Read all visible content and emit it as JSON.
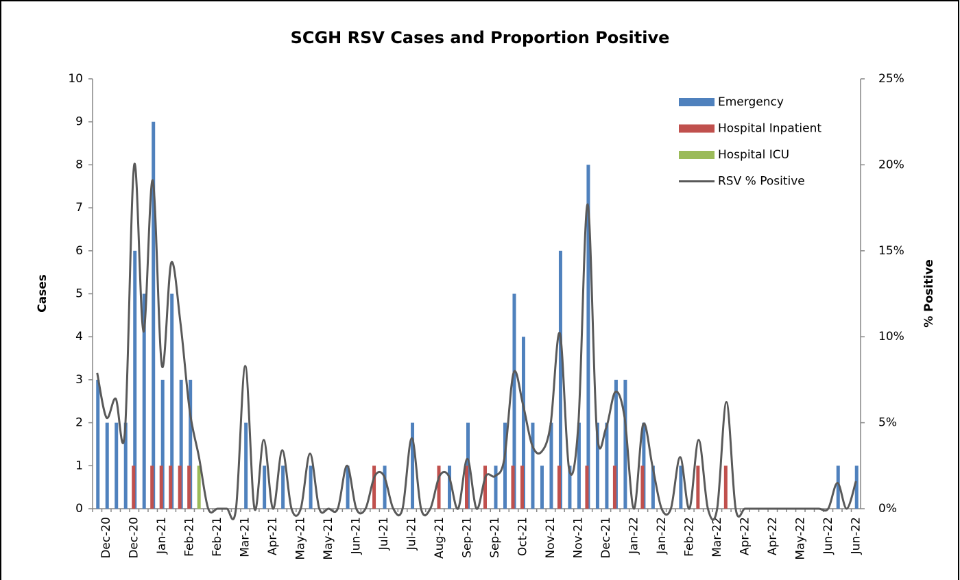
{
  "chart_data": {
    "type": "bar_line",
    "title": "SCGH RSV Cases and Proportion Positive",
    "y_label": "Cases",
    "y2_label": "% Positive",
    "categories": [
      null,
      "Dec-20",
      null,
      null,
      "Dec-20",
      null,
      null,
      "Jan-21",
      null,
      null,
      "Feb-21",
      null,
      null,
      "Feb-21",
      null,
      null,
      "Mar-21",
      null,
      null,
      "Apr-21",
      null,
      null,
      "May-21",
      null,
      null,
      "May-21",
      null,
      null,
      "Jun-21",
      null,
      null,
      "Jul-21",
      null,
      null,
      "Jul-21",
      null,
      null,
      "Aug-21",
      null,
      null,
      "Sep-21",
      null,
      null,
      "Sep-21",
      null,
      null,
      "Oct-21",
      null,
      null,
      "Nov-21",
      null,
      null,
      "Nov-21",
      null,
      null,
      "Dec-21",
      null,
      null,
      "Jan-22",
      null,
      null,
      "Jan-22",
      null,
      null,
      "Feb-22",
      null,
      null,
      "Mar-22",
      null,
      null,
      "Apr-22",
      null,
      null,
      "Apr-22",
      null,
      null,
      "May-22",
      null,
      null,
      "Jun-22",
      null,
      null,
      "Jun-22"
    ],
    "series": [
      {
        "name": "Emergency",
        "color": "#4f81bd",
        "values": [
          3,
          2,
          2,
          2,
          6,
          5,
          9,
          3,
          5,
          3,
          3,
          0,
          0,
          0,
          0,
          0,
          2,
          0,
          1,
          0,
          1,
          0,
          0,
          1,
          0,
          0,
          0,
          1,
          0,
          0,
          0,
          1,
          0,
          0,
          2,
          0,
          0,
          0,
          1,
          0,
          2,
          0,
          0,
          1,
          2,
          5,
          4,
          2,
          1,
          2,
          6,
          1,
          2,
          8,
          2,
          2,
          3,
          3,
          0,
          2,
          1,
          0,
          0,
          1,
          0,
          0,
          0,
          0,
          0,
          0,
          0,
          0,
          0,
          0,
          0,
          0,
          0,
          0,
          0,
          0,
          1,
          0,
          1
        ]
      },
      {
        "name": "Hospital Inpatient",
        "color": "#c0504d",
        "values": [
          0,
          0,
          0,
          0,
          1,
          0,
          1,
          1,
          1,
          1,
          1,
          0,
          0,
          0,
          0,
          0,
          0,
          0,
          0,
          0,
          0,
          0,
          0,
          0,
          0,
          0,
          0,
          0,
          0,
          0,
          1,
          0,
          0,
          0,
          0,
          0,
          0,
          1,
          0,
          0,
          1,
          0,
          1,
          0,
          0,
          1,
          1,
          0,
          0,
          0,
          1,
          0,
          0,
          1,
          0,
          0,
          1,
          0,
          0,
          1,
          0,
          0,
          0,
          0,
          0,
          1,
          0,
          0,
          1,
          0,
          0,
          0,
          0,
          0,
          0,
          0,
          0,
          0,
          0,
          0,
          0,
          0,
          0
        ]
      },
      {
        "name": "Hospital ICU",
        "color": "#9bbb59",
        "values": [
          0,
          0,
          0,
          0,
          0,
          0,
          0,
          0,
          0,
          0,
          0,
          1,
          0,
          0,
          0,
          0,
          0,
          0,
          0,
          0,
          0,
          0,
          0,
          0,
          0,
          0,
          0,
          0,
          0,
          0,
          0,
          0,
          0,
          0,
          0,
          0,
          0,
          0,
          0,
          0,
          0,
          0,
          0,
          0,
          0,
          0,
          0,
          0,
          0,
          0,
          0,
          0,
          0,
          0,
          0,
          0,
          0,
          0,
          0,
          0,
          0,
          0,
          0,
          0,
          0,
          0,
          0,
          0,
          0,
          0,
          0,
          0,
          0,
          0,
          0,
          0,
          0,
          0,
          0,
          0,
          0,
          0,
          0
        ]
      },
      {
        "name": "RSV % Positive",
        "color": "#595959",
        "axis": "y2",
        "values": [
          7.9,
          5.3,
          6.4,
          4.5,
          20,
          10.3,
          19.1,
          8.3,
          14.3,
          10.8,
          5.7,
          3,
          0,
          0,
          0,
          0,
          8.3,
          0,
          4,
          0,
          3.4,
          0,
          0,
          3.2,
          0,
          0,
          0,
          2.5,
          0,
          0,
          1.9,
          1.9,
          0,
          0,
          4.1,
          0,
          0,
          1.9,
          1.9,
          0,
          2.9,
          0,
          1.9,
          1.9,
          2.9,
          7.9,
          6.1,
          3.7,
          3.3,
          4.9,
          10.2,
          2.3,
          4.9,
          17.7,
          4.5,
          4.7,
          6.8,
          5.3,
          0,
          4.9,
          2.5,
          0,
          0,
          3,
          0,
          4,
          0,
          0,
          6.2,
          0,
          0,
          0,
          0,
          0,
          0,
          0,
          0,
          0,
          0,
          0,
          1.5,
          0,
          1.6
        ]
      }
    ],
    "ylim": [
      0,
      10
    ],
    "yticks": [
      0,
      1,
      2,
      3,
      4,
      5,
      6,
      7,
      8,
      9,
      10
    ],
    "y2lim": [
      0,
      25
    ],
    "y2ticks": [
      {
        "value": 0,
        "label": "0%"
      },
      {
        "value": 5,
        "label": "5%"
      },
      {
        "value": 10,
        "label": "10%"
      },
      {
        "value": 15,
        "label": "15%"
      },
      {
        "value": 20,
        "label": "20%"
      },
      {
        "value": 25,
        "label": "25%"
      }
    ],
    "legend": "upper right"
  }
}
